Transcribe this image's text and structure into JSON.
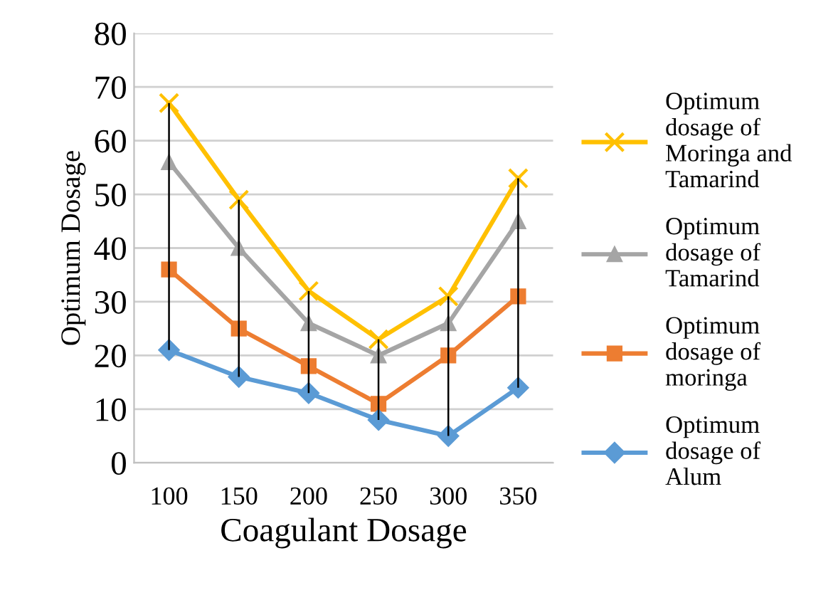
{
  "chart_data": {
    "type": "line",
    "xlabel": "Coagulant Dosage",
    "ylabel": "Optimum Dosage",
    "categories": [
      "100",
      "150",
      "200",
      "250",
      "300",
      "350"
    ],
    "series": [
      {
        "name": "Optimum dosage of Moringa and Tamarind",
        "color": "#ffc000",
        "marker": "cross",
        "values": [
          67,
          49,
          32,
          23,
          31,
          53
        ],
        "errors": [
          [
            21,
            67
          ],
          [
            16,
            49
          ],
          [
            13,
            32
          ],
          [
            8,
            23
          ],
          [
            5,
            31
          ],
          [
            14,
            53
          ]
        ]
      },
      {
        "name": "Optimum dosage of Tamarind",
        "color": "#a5a5a5",
        "marker": "triangle",
        "values": [
          56,
          40,
          26,
          20,
          26,
          45
        ]
      },
      {
        "name": "Optimum dosage of moringa",
        "color": "#ed7d31",
        "marker": "square",
        "values": [
          36,
          25,
          18,
          11,
          20,
          31
        ]
      },
      {
        "name": "Optimum dosage of Alum",
        "color": "#5b9bd5",
        "marker": "diamond",
        "values": [
          21,
          16,
          13,
          8,
          5,
          14
        ]
      }
    ],
    "ylim": [
      0,
      80
    ],
    "yticks": [
      0,
      10,
      20,
      30,
      40,
      50,
      60,
      70,
      80
    ],
    "grid": "y",
    "legend": "right"
  }
}
